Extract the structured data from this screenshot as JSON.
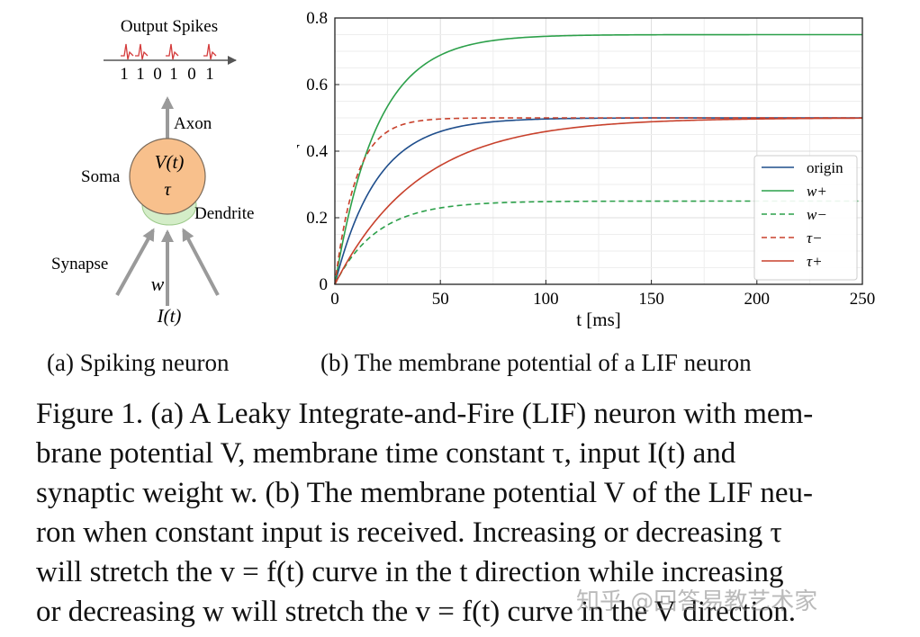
{
  "panel_a": {
    "output_label": "Output Spikes",
    "bits": [
      "1",
      "1",
      "0",
      "1",
      "0",
      "1"
    ],
    "axon_label": "Axon",
    "soma_label": "Soma",
    "soma_var": "V(t)",
    "soma_tau": "τ",
    "dendrite_label": "Dendrite",
    "synapse_label": "Synapse",
    "weight_label": "w",
    "input_label": "I(t)",
    "colors": {
      "soma": "#f8c08c",
      "dendrite": "#d4edc8",
      "arrows": "#9a9a9a",
      "spikes": "#d43c3c"
    }
  },
  "panel_b": {
    "chart_data": {
      "type": "line",
      "xlabel": "t [ms]",
      "ylabel": "V",
      "xlim": [
        0,
        250
      ],
      "ylim": [
        0,
        0.8
      ],
      "xticks": [
        0,
        50,
        100,
        150,
        200,
        250
      ],
      "yticks": [
        0,
        0.2,
        0.4,
        0.6,
        0.8
      ],
      "grid": true,
      "legend_position": "lower-right",
      "series": [
        {
          "name": "origin",
          "v_inf": 0.5,
          "tau_ms": 20,
          "color": "#1f4e8c",
          "dash": "solid",
          "x": [
            0,
            10,
            20,
            30,
            50,
            100,
            150,
            250
          ],
          "y": [
            0,
            0.197,
            0.316,
            0.388,
            0.459,
            0.497,
            0.5,
            0.5
          ]
        },
        {
          "name": "w+",
          "v_inf": 0.75,
          "tau_ms": 20,
          "color": "#2ca04a",
          "dash": "solid",
          "x": [
            0,
            10,
            20,
            30,
            50,
            100,
            150,
            250
          ],
          "y": [
            0,
            0.295,
            0.474,
            0.583,
            0.688,
            0.745,
            0.75,
            0.75
          ]
        },
        {
          "name": "w−",
          "v_inf": 0.25,
          "tau_ms": 20,
          "color": "#2ca04a",
          "dash": "dashed",
          "x": [
            0,
            10,
            20,
            30,
            50,
            100,
            150,
            250
          ],
          "y": [
            0,
            0.098,
            0.158,
            0.194,
            0.229,
            0.248,
            0.25,
            0.25
          ]
        },
        {
          "name": "τ−",
          "v_inf": 0.5,
          "tau_ms": 10,
          "color": "#c8412c",
          "dash": "dashed",
          "x": [
            0,
            10,
            20,
            30,
            50,
            100,
            150,
            250
          ],
          "y": [
            0,
            0.316,
            0.432,
            0.475,
            0.497,
            0.5,
            0.5,
            0.5
          ]
        },
        {
          "name": "τ+",
          "v_inf": 0.5,
          "tau_ms": 40,
          "color": "#c8412c",
          "dash": "solid",
          "x": [
            0,
            10,
            20,
            30,
            50,
            100,
            150,
            250
          ],
          "y": [
            0,
            0.111,
            0.197,
            0.264,
            0.357,
            0.459,
            0.488,
            0.499
          ]
        }
      ]
    }
  },
  "subcaptions": {
    "a": "(a)  Spiking neuron",
    "b": "(b)  The membrane potential of a LIF neuron"
  },
  "caption": {
    "line1": "Figure 1. (a) A Leaky Integrate-and-Fire (LIF) neuron with mem-",
    "line2": "brane potential V, membrane time constant τ, input I(t) and",
    "line3": "synaptic weight w. (b) The membrane potential V of the LIF neu-",
    "line4": "ron when constant input is received.  Increasing or decreasing τ",
    "line5": "will stretch the v = f(t) curve in the t direction while increasing",
    "line6": "or decreasing w will stretch the v = f(t) curve in the V direction."
  },
  "watermark": "知乎 @回答易教艺术家"
}
